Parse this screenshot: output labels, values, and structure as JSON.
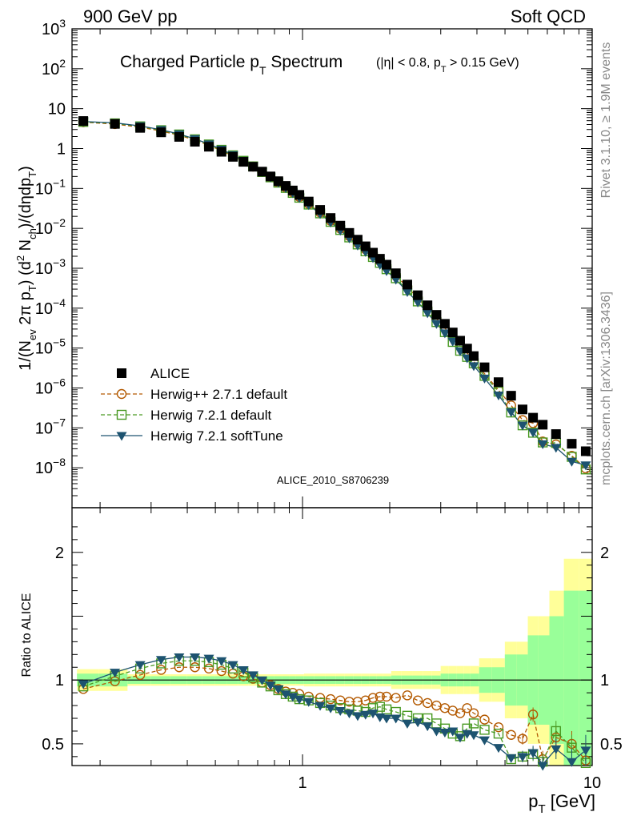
{
  "header": {
    "left": "900 GeV pp",
    "right": "Soft QCD"
  },
  "side": {
    "rivet": "Rivet 3.1.10, ≥ 1.9M events",
    "mcplots": "mcplots.cern.ch [arXiv:1306.3436]"
  },
  "chart_data": {
    "type": "scatter",
    "title_main": "Charged Particle p",
    "title_main_sub": "T",
    "title_main_tail": " Spectrum",
    "title_cut_a": "(|η| < 0.8, p",
    "title_cut_sub": "T",
    "title_cut_b": " > 0.15 GeV)",
    "analysis_tag": "ALICE_2010_S8706239",
    "xlabel_main": "p",
    "xlabel_sub": "T",
    "xlabel_tail": " [GeV]",
    "ylabel": "1/(N_ev 2π p_T) (d² N_ch)/(dηdp_T)",
    "ratio_ylabel": "Ratio to ALICE",
    "x_scale": "log",
    "xlim": [
      0.16,
      10
    ],
    "ylim": [
      1e-09,
      1000
    ],
    "ratio_ylim": [
      0.33,
      2.35
    ],
    "x_tick_labels": [
      "1",
      "10"
    ],
    "y_tick_labels": [
      "10^{-8}",
      "10^{-7}",
      "10^{-6}",
      "10^{-5}",
      "10^{-4}",
      "10^{-3}",
      "10^{-2}",
      "10^{-1}",
      "1",
      "10",
      "10^{2}",
      "10^{3}"
    ],
    "ratio_tick_labels": [
      "0.5",
      "1",
      "2"
    ],
    "legend_position": "lower-left",
    "x": [
      0.175,
      0.225,
      0.275,
      0.325,
      0.375,
      0.425,
      0.475,
      0.525,
      0.575,
      0.625,
      0.675,
      0.725,
      0.775,
      0.825,
      0.875,
      0.925,
      0.975,
      1.05,
      1.15,
      1.25,
      1.35,
      1.45,
      1.55,
      1.65,
      1.75,
      1.85,
      1.95,
      2.1,
      2.3,
      2.5,
      2.7,
      2.9,
      3.1,
      3.3,
      3.5,
      3.7,
      3.9,
      4.25,
      4.75,
      5.25,
      5.75,
      6.25,
      6.75,
      7.5,
      8.5,
      9.5
    ],
    "series": [
      {
        "name": "ALICE",
        "marker": "filled-square",
        "color": "#000000",
        "values": [
          4.9,
          4.15,
          3.3,
          2.55,
          1.96,
          1.48,
          1.11,
          0.83,
          0.62,
          0.465,
          0.35,
          0.264,
          0.2,
          0.152,
          0.116,
          0.089,
          0.069,
          0.047,
          0.029,
          0.0182,
          0.0117,
          0.0077,
          0.0052,
          0.00355,
          0.00246,
          0.00173,
          0.00123,
          0.00075,
          0.00039,
          0.000211,
          0.000118,
          6.8e-05,
          4.05e-05,
          2.46e-05,
          1.53e-05,
          9.7e-06,
          6.3e-06,
          3.3e-06,
          1.4e-06,
          6.4e-07,
          2.9e-07,
          1.8e-07,
          1.2e-07,
          7e-08,
          4e-08,
          2.6e-08
        ]
      },
      {
        "name": "Herwig++ 2.7.1 default",
        "marker": "open-circle",
        "color": "#b35900",
        "ratio": [
          0.93,
          0.99,
          1.04,
          1.08,
          1.1,
          1.1,
          1.09,
          1.07,
          1.05,
          1.03,
          1.01,
          0.98,
          0.96,
          0.93,
          0.91,
          0.9,
          0.89,
          0.87,
          0.86,
          0.85,
          0.84,
          0.83,
          0.83,
          0.84,
          0.86,
          0.87,
          0.87,
          0.86,
          0.88,
          0.84,
          0.82,
          0.8,
          0.78,
          0.76,
          0.74,
          0.78,
          0.74,
          0.69,
          0.63,
          0.57,
          0.54,
          0.73,
          0.38,
          0.55,
          0.5,
          0.37
        ]
      },
      {
        "name": "Herwig 7.2.1 default",
        "marker": "open-square",
        "color": "#4a9a23",
        "ratio": [
          0.95,
          1.03,
          1.09,
          1.13,
          1.15,
          1.15,
          1.14,
          1.12,
          1.09,
          1.06,
          1.02,
          0.98,
          0.95,
          0.92,
          0.89,
          0.87,
          0.85,
          0.84,
          0.82,
          0.8,
          0.78,
          0.77,
          0.76,
          0.75,
          0.78,
          0.79,
          0.77,
          0.75,
          0.72,
          0.7,
          0.7,
          0.66,
          0.62,
          0.58,
          0.56,
          0.62,
          0.66,
          0.61,
          0.58,
          0.38,
          0.4,
          0.42,
          0.36,
          0.6,
          0.47,
          0.35
        ]
      },
      {
        "name": "Herwig 7.2.1 softTune",
        "marker": "filled-triangle-down",
        "color": "#1d5370",
        "ratio": [
          0.97,
          1.06,
          1.12,
          1.16,
          1.18,
          1.18,
          1.17,
          1.15,
          1.12,
          1.08,
          1.04,
          1.0,
          0.96,
          0.93,
          0.89,
          0.87,
          0.85,
          0.83,
          0.8,
          0.78,
          0.76,
          0.74,
          0.72,
          0.73,
          0.74,
          0.71,
          0.7,
          0.7,
          0.66,
          0.67,
          0.64,
          0.6,
          0.59,
          0.6,
          0.55,
          0.58,
          0.57,
          0.53,
          0.47,
          0.39,
          0.4,
          0.43,
          0.33,
          0.46,
          0.36,
          0.45
        ]
      }
    ]
  }
}
